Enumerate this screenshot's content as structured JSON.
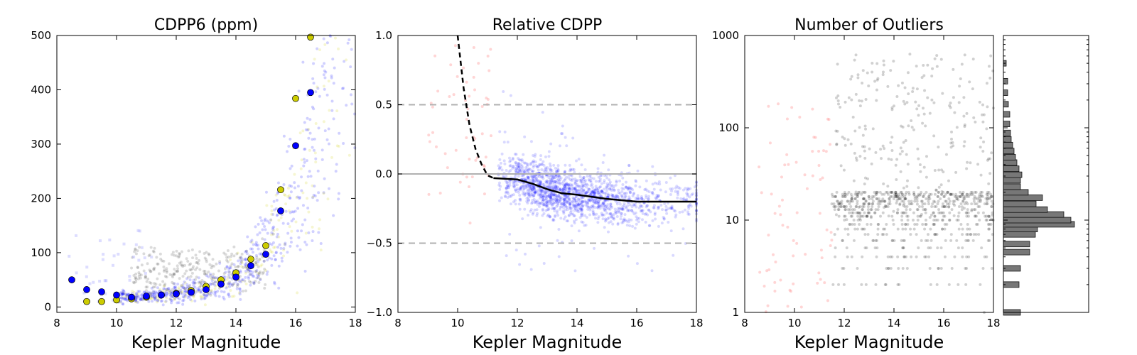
{
  "chart_data": [
    {
      "type": "scatter",
      "title": "CDPP6 (ppm)",
      "xlabel": "Kepler Magnitude",
      "ylabel": "",
      "xlim": [
        8,
        18
      ],
      "ylim": [
        -10,
        500
      ],
      "xticks": [
        8,
        10,
        12,
        14,
        16,
        18
      ],
      "yticks": [
        0,
        100,
        200,
        300,
        400,
        500
      ],
      "xtick_labels": [
        "8",
        "10",
        "12",
        "14",
        "16",
        "18"
      ],
      "ytick_labels": [
        "0",
        "100",
        "200",
        "300",
        "400",
        "500"
      ],
      "grid": false,
      "series": [
        {
          "color": "#0000ff",
          "marker": "circle",
          "x": [
            8.5,
            9.0,
            9.5,
            10.0,
            10.5,
            11.0,
            11.5,
            12.0,
            12.5,
            13.0,
            13.5,
            14.0,
            14.5,
            15.0,
            15.5,
            16.0,
            16.5
          ],
          "y": [
            50,
            32,
            28,
            22,
            18,
            20,
            22,
            24,
            27,
            32,
            42,
            55,
            76,
            97,
            177,
            297,
            395
          ]
        },
        {
          "color": "#cccc00",
          "marker": "circle",
          "x": [
            9.0,
            9.5,
            10.0,
            10.5,
            11.0,
            11.5,
            12.0,
            12.5,
            13.0,
            13.5,
            14.0,
            14.5,
            15.0,
            15.5,
            16.0,
            16.5
          ],
          "y": [
            10,
            10,
            13,
            15,
            18,
            22,
            25,
            30,
            38,
            50,
            63,
            88,
            113,
            216,
            384,
            497
          ]
        }
      ],
      "background_scatter_colors": [
        "#0000ff",
        "#cccc00",
        "#000000",
        "#7777ff"
      ]
    },
    {
      "type": "scatter",
      "title": "Relative CDPP",
      "xlabel": "Kepler Magnitude",
      "ylabel": "",
      "xlim": [
        8,
        18
      ],
      "ylim": [
        -1.0,
        1.0
      ],
      "xticks": [
        8,
        10,
        12,
        14,
        16,
        18
      ],
      "yticks": [
        -1.0,
        -0.5,
        0.0,
        0.5,
        1.0
      ],
      "xtick_labels": [
        "8",
        "10",
        "12",
        "14",
        "16",
        "18"
      ],
      "ytick_labels": [
        "−1.0",
        "−0.5",
        "0.0",
        "0.5",
        "1.0"
      ],
      "grid": false,
      "reference_lines": [
        {
          "y": 0.5,
          "style": "dashed",
          "color": "#b0b0b0"
        },
        {
          "y": 0.0,
          "style": "solid",
          "color": "#b0b0b0"
        },
        {
          "y": -0.5,
          "style": "dashed",
          "color": "#b0b0b0"
        }
      ],
      "series": [
        {
          "style": "dashed",
          "color": "#000000",
          "x": [
            10.0,
            10.2,
            10.4,
            10.6,
            10.8,
            11.0,
            11.2
          ],
          "y": [
            1.0,
            0.62,
            0.35,
            0.18,
            0.07,
            -0.01,
            -0.03
          ]
        },
        {
          "style": "solid",
          "color": "#000000",
          "x": [
            11.2,
            12.0,
            12.5,
            13.0,
            13.5,
            14.0,
            15.0,
            16.0,
            17.0,
            18.0
          ],
          "y": [
            -0.03,
            -0.04,
            -0.07,
            -0.11,
            -0.14,
            -0.15,
            -0.18,
            -0.2,
            -0.2,
            -0.2
          ]
        }
      ],
      "background_scatter_colors": [
        "#0000ff",
        "#ff8888"
      ]
    },
    {
      "type": "scatter",
      "title": "Number of Outliers",
      "xlabel": "Kepler Magnitude",
      "ylabel": "",
      "xlim": [
        8,
        18
      ],
      "ylim": [
        1,
        1000
      ],
      "yscale": "log",
      "xticks": [
        8,
        10,
        12,
        14,
        16,
        18
      ],
      "yticks": [
        1,
        10,
        100,
        1000
      ],
      "xtick_labels": [
        "8",
        "10",
        "12",
        "14",
        "16",
        "18"
      ],
      "ytick_labels": [
        "1",
        "10",
        "100",
        "1000"
      ],
      "grid": false,
      "background_scatter_colors": [
        "#000000",
        "#ff8888"
      ]
    },
    {
      "type": "bar",
      "orientation": "horizontal",
      "yscale": "log",
      "ylim": [
        1,
        1000
      ],
      "color": "#777777",
      "bins": [
        {
          "y": 1.0,
          "value": 24
        },
        {
          "y": 2.0,
          "value": 22
        },
        {
          "y": 3.0,
          "value": 24
        },
        {
          "y": 4.5,
          "value": 37
        },
        {
          "y": 5.5,
          "value": 37
        },
        {
          "y": 7.0,
          "value": 45
        },
        {
          "y": 8.0,
          "value": 48
        },
        {
          "y": 9.0,
          "value": 100
        },
        {
          "y": 10.0,
          "value": 95
        },
        {
          "y": 11.5,
          "value": 85
        },
        {
          "y": 13.0,
          "value": 62
        },
        {
          "y": 15.0,
          "value": 46
        },
        {
          "y": 17.5,
          "value": 55
        },
        {
          "y": 20.0,
          "value": 35
        },
        {
          "y": 23.0,
          "value": 24
        },
        {
          "y": 27.0,
          "value": 24
        },
        {
          "y": 31.0,
          "value": 26
        },
        {
          "y": 36.0,
          "value": 22
        },
        {
          "y": 42.0,
          "value": 19
        },
        {
          "y": 48.0,
          "value": 17
        },
        {
          "y": 56.0,
          "value": 15
        },
        {
          "y": 65.0,
          "value": 13
        },
        {
          "y": 75.0,
          "value": 11
        },
        {
          "y": 88.0,
          "value": 10
        },
        {
          "y": 110.0,
          "value": 9
        },
        {
          "y": 140.0,
          "value": 9
        },
        {
          "y": 180.0,
          "value": 7
        },
        {
          "y": 240.0,
          "value": 6
        },
        {
          "y": 320.0,
          "value": 6
        },
        {
          "y": 500.0,
          "value": 4
        }
      ]
    }
  ]
}
